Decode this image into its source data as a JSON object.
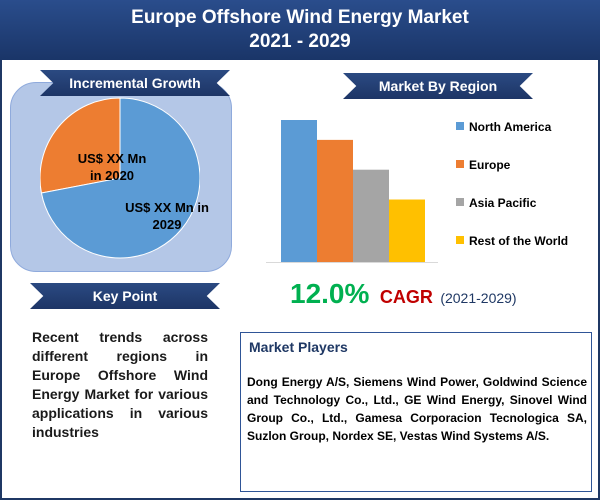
{
  "header": {
    "title_line1": "Europe Offshore Wind Energy Market",
    "title_line2": "2021 - 2029"
  },
  "sections": {
    "incremental_growth": "Incremental Growth",
    "market_by_region": "Market By Region",
    "key_point": "Key Point",
    "market_players": "Market Players"
  },
  "pie": {
    "label_2020_line1": "US$ XX Mn",
    "label_2020_line2": "in 2020",
    "label_2029_line1": "US$ XX Mn in",
    "label_2029_line2": "2029"
  },
  "key_point_text": "Recent trends across different regions in Europe Offshore Wind Energy Market for various applications in various industries",
  "cagr": {
    "value": "12.0%",
    "label": "CAGR",
    "period": "(2021-2029)"
  },
  "market_players_text": "Dong Energy A/S, Siemens Wind Power, Goldwind Science and Technology Co., Ltd., GE Wind Energy, Sinovel Wind Group Co., Ltd., Gamesa Corporacion Tecnologica SA, Suzlon Group, Nordex SE, Vestas Wind Systems A/S.",
  "colors": {
    "header_bg": "#1f3864",
    "panel_bg": "#b4c7e7",
    "pie_2020": "#ed7d31",
    "pie_2029": "#5b9bd5",
    "cagr_value": "#00b050",
    "cagr_label": "#c00000"
  },
  "chart_data": [
    {
      "type": "pie",
      "categories": [
        "2020",
        "2029"
      ],
      "values": [
        28,
        72
      ],
      "colors": [
        "#ed7d31",
        "#5b9bd5"
      ]
    },
    {
      "type": "bar",
      "categories": [
        "North America",
        "Europe",
        "Asia Pacific",
        "Rest of the World"
      ],
      "values": [
        100,
        86,
        65,
        44
      ],
      "colors": [
        "#5b9bd5",
        "#ed7d31",
        "#a5a5a5",
        "#ffc000"
      ],
      "legend_placement": "right",
      "grid": false
    }
  ]
}
